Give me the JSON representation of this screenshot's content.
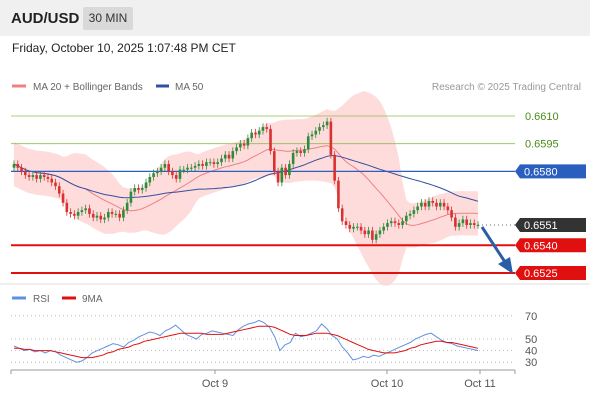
{
  "header": {
    "symbol": "AUD/USD",
    "timeframe": "30 MIN",
    "datetime": "Friday, October 10, 2025 1:07:48 PM CET",
    "copyright": "Research © 2025 Trading Central"
  },
  "colors": {
    "resistance": "#8fbf4f",
    "pivot": "#2a5fbf",
    "support": "#e01010",
    "current": "#333333",
    "up_candle": "#2e8b3a",
    "down_candle": "#d93030",
    "ma20": "#f08080",
    "ma50": "#3050a0",
    "band_fill": "#ffd6d6",
    "rsi": "#6090e0",
    "rsi_ma": "#e01010",
    "arrow": "#2a5fa8"
  },
  "chart_data": [
    {
      "type": "candlestick",
      "instrument": "AUD/USD",
      "timeframe": "30 MIN",
      "legend": [
        {
          "label": "MA 20 + Bollinger Bands",
          "color": "#f08080"
        },
        {
          "label": "MA 50",
          "color": "#3050a0"
        }
      ],
      "ylim": [
        0.651,
        0.6618
      ],
      "x_ticks": [
        "Oct 9",
        "Oct 10",
        "Oct 11"
      ],
      "levels": [
        {
          "value": 0.661,
          "label": "0.6610",
          "kind": "resistance"
        },
        {
          "value": 0.6595,
          "label": "0.6595",
          "kind": "resistance"
        },
        {
          "value": 0.658,
          "label": "0.6580",
          "kind": "pivot"
        },
        {
          "value": 0.6551,
          "label": "0.6551",
          "kind": "current"
        },
        {
          "value": 0.654,
          "label": "0.6540",
          "kind": "support"
        },
        {
          "value": 0.6525,
          "label": "0.6525",
          "kind": "support"
        }
      ],
      "close": [
        0.6584,
        0.6582,
        0.658,
        0.6578,
        0.6577,
        0.6578,
        0.6576,
        0.6578,
        0.6577,
        0.6576,
        0.6574,
        0.6572,
        0.6568,
        0.6563,
        0.6558,
        0.6557,
        0.6556,
        0.6558,
        0.6559,
        0.656,
        0.6557,
        0.6555,
        0.6556,
        0.6554,
        0.6555,
        0.6558,
        0.6557,
        0.6557,
        0.6555,
        0.6559,
        0.6563,
        0.6569,
        0.6571,
        0.657,
        0.6571,
        0.6574,
        0.6577,
        0.6579,
        0.658,
        0.6582,
        0.6584,
        0.658,
        0.6578,
        0.6576,
        0.6581,
        0.6581,
        0.6582,
        0.6582,
        0.6583,
        0.6584,
        0.6583,
        0.6585,
        0.6585,
        0.6584,
        0.6585,
        0.6587,
        0.6589,
        0.6587,
        0.6591,
        0.6593,
        0.6595,
        0.6594,
        0.6598,
        0.6601,
        0.66,
        0.6602,
        0.6604,
        0.6603,
        0.6591,
        0.658,
        0.6574,
        0.6582,
        0.6578,
        0.6584,
        0.659,
        0.6591,
        0.659,
        0.6592,
        0.6599,
        0.66,
        0.6602,
        0.6604,
        0.6605,
        0.6607,
        0.6589,
        0.6575,
        0.656,
        0.6553,
        0.6551,
        0.6549,
        0.655,
        0.655,
        0.6548,
        0.6546,
        0.6548,
        0.6543,
        0.6546,
        0.6548,
        0.655,
        0.6552,
        0.6553,
        0.6552,
        0.6551,
        0.6553,
        0.6556,
        0.6557,
        0.6559,
        0.6561,
        0.6563,
        0.6561,
        0.6564,
        0.6563,
        0.6561,
        0.6563,
        0.6561,
        0.6559,
        0.6555,
        0.655,
        0.6552,
        0.6554,
        0.6551,
        0.6552,
        0.6551,
        0.6551
      ]
    },
    {
      "type": "line",
      "title": "RSI",
      "legend": [
        {
          "label": "RSI",
          "color": "#6090e0"
        },
        {
          "label": "9MA",
          "color": "#e01010"
        }
      ],
      "ylim": [
        25,
        75
      ],
      "y_ticks": [
        70,
        50,
        40,
        30
      ],
      "series": [
        {
          "name": "RSI",
          "values": [
            44,
            42,
            40,
            41,
            39,
            40,
            38,
            40,
            39,
            36,
            34,
            32,
            30,
            31,
            34,
            38,
            40,
            42,
            44,
            46,
            45,
            43,
            47,
            49,
            52,
            54,
            56,
            55,
            53,
            57,
            59,
            62,
            58,
            54,
            52,
            50,
            54,
            55,
            57,
            56,
            55,
            54,
            53,
            58,
            61,
            63,
            64,
            66,
            64,
            60,
            52,
            40,
            45,
            47,
            55,
            52,
            53,
            55,
            57,
            63,
            59,
            53,
            50,
            43,
            38,
            32,
            33,
            35,
            34,
            36,
            35,
            37,
            39,
            41,
            43,
            45,
            47,
            50,
            52,
            54,
            55,
            52,
            49,
            47,
            46,
            44,
            43,
            42,
            41,
            40
          ]
        },
        {
          "name": "9MA",
          "values": [
            42,
            42,
            41,
            41,
            40,
            40,
            40,
            40,
            39,
            38,
            37,
            36,
            35,
            34,
            34,
            34,
            35,
            36,
            38,
            39,
            41,
            42,
            43,
            45,
            46,
            48,
            49,
            50,
            51,
            52,
            53,
            54,
            55,
            55,
            55,
            55,
            55,
            54,
            54,
            54,
            54,
            55,
            56,
            57,
            58,
            59,
            60,
            61,
            61,
            61,
            60,
            58,
            56,
            54,
            53,
            53,
            53,
            54,
            55,
            55,
            55,
            54,
            53,
            51,
            49,
            47,
            45,
            43,
            41,
            40,
            39,
            38,
            38,
            38,
            39,
            40,
            42,
            43,
            45,
            46,
            47,
            48,
            48,
            47,
            47,
            46,
            45,
            44,
            43,
            42
          ]
        }
      ]
    }
  ]
}
